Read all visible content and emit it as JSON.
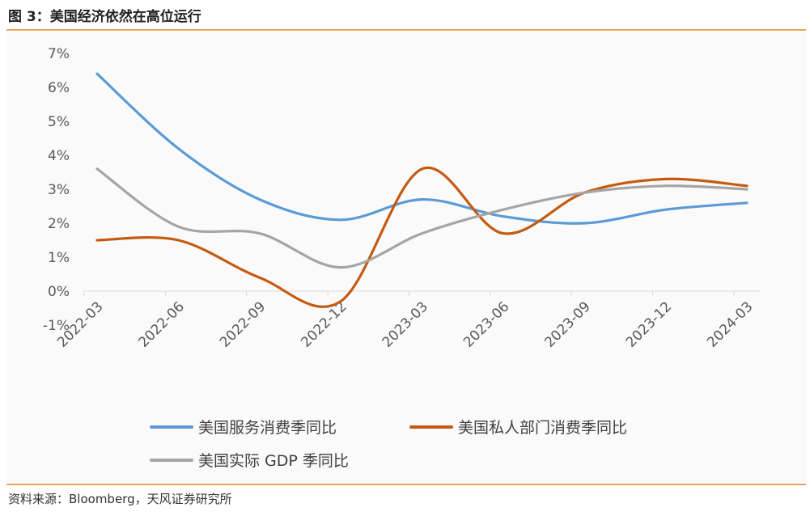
{
  "figure": {
    "title": "图 3：美国经济依然在高位运行",
    "source": "资料来源：Bloomberg，天风证券研究所"
  },
  "chart_data": {
    "type": "line",
    "categories": [
      "2022-03",
      "2022-06",
      "2022-09",
      "2022-12",
      "2023-03",
      "2023-06",
      "2023-09",
      "2023-12",
      "2024-03"
    ],
    "yticks": [
      "7%",
      "6%",
      "5%",
      "4%",
      "3%",
      "2%",
      "1%",
      "0%",
      "-1%"
    ],
    "ylim": [
      -1,
      7
    ],
    "unit": "%",
    "legend_position": "bottom",
    "series": [
      {
        "name": "美国服务消费季同比",
        "color": "#5b9bd5",
        "values": [
          6.4,
          4.2,
          2.7,
          2.1,
          2.7,
          2.2,
          2.0,
          2.4,
          2.6
        ]
      },
      {
        "name": "美国私人部门消费季同比",
        "color": "#c55a11",
        "values": [
          1.5,
          1.5,
          0.4,
          -0.3,
          3.6,
          1.7,
          2.9,
          3.3,
          3.1
        ]
      },
      {
        "name": "美国实际 GDP 季同比",
        "color": "#a5a5a5",
        "values": [
          3.6,
          1.9,
          1.7,
          0.7,
          1.7,
          2.4,
          2.9,
          3.1,
          3.0
        ]
      }
    ]
  }
}
